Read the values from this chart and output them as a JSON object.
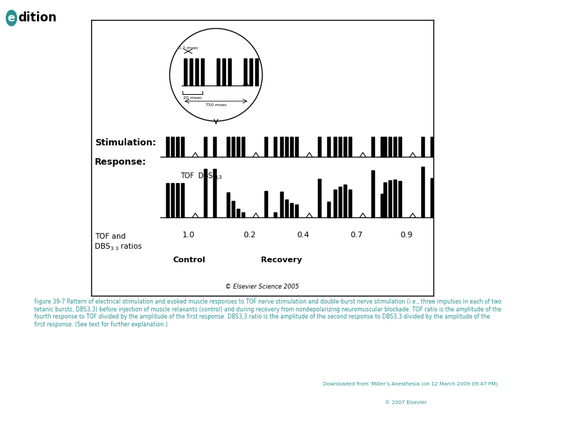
{
  "figure_bg": "#ffffff",
  "panel_bg": "#ffffff",
  "panel_border": "#000000",
  "caption_text": "Figure 39-7 Pattern of electrical stimulation and evoked muscle responses to TOF nerve stimulation and double-burst nerve stimulation (i.e., three impulses in each of two\ntetanic bursts, DBS3,3) before injection of muscle relaxants (control) and during recovery from nondepolarizing neuromuscular blockade. TOF ratio is the amplitude of the\nfourth response to TOF divided by the amplitude of the first response. DBS3,3 ratio is the amplitude of the second response to DBS3,3 divided by the amplitude of the\nfirst response. (See text for further explanation.)",
  "downloaded_text": "Downloaded from 'Miller's Anesthesia (on 12 March 2009 09:47 PM)",
  "elsevier_text": "© 2007 Elsevier",
  "copyright_text": "© Elsevier Science 2005",
  "stimulation_label": "Stimulation:",
  "response_label": "Response:",
  "ratios": [
    "1.0",
    "0.2",
    "0.4",
    "0.7",
    "0.9"
  ],
  "control_label": "Control",
  "recovery_label": "Recovery",
  "inset_label_02": "0.2 msec",
  "inset_label_20": "20 msec",
  "inset_label_750": "750 msec",
  "tof_label": "TOF",
  "dbs_label": "DBS",
  "dbs_sub": "3,3",
  "tof_and_label": "TOF and",
  "dbs_ratios_label": "DBS",
  "dbs_ratios_sub": "3 3",
  "ratios_label": " ratios",
  "edition_color": "#2a9090",
  "text_color": "#000000"
}
